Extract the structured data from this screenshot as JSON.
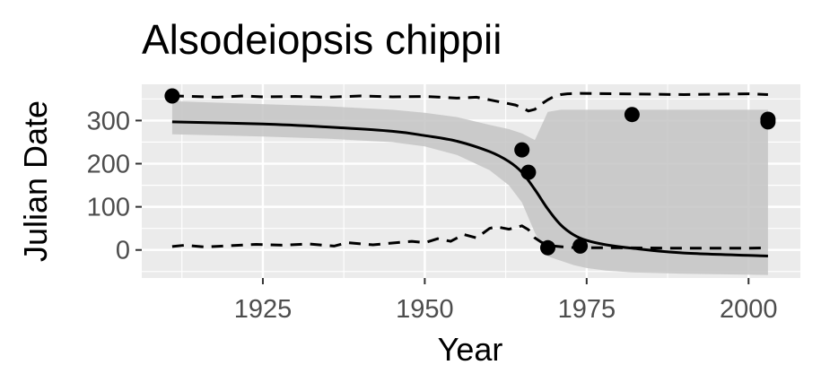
{
  "chart_data": {
    "type": "line",
    "title": "Alsodeiopsis chippii",
    "xlabel": "Year",
    "ylabel": "Julian Date",
    "xlim": [
      1906.3,
      2008.0
    ],
    "ylim": [
      -65,
      384
    ],
    "xticks": [
      1925,
      1950,
      1975,
      2000
    ],
    "xtick_labels": [
      "1925",
      "1950",
      "1975",
      "2000"
    ],
    "yticks": [
      0,
      100,
      200,
      300
    ],
    "ytick_labels": [
      "0",
      "100",
      "200",
      "300"
    ],
    "grid": true,
    "legend": "none",
    "points": [
      {
        "x": 1911,
        "y": 357
      },
      {
        "x": 1965,
        "y": 232
      },
      {
        "x": 1966,
        "y": 180
      },
      {
        "x": 1969,
        "y": 5
      },
      {
        "x": 1974,
        "y": 9
      },
      {
        "x": 1982,
        "y": 314
      },
      {
        "x": 2003,
        "y": 297
      },
      {
        "x": 2003,
        "y": 303
      }
    ],
    "fit": {
      "x": [
        1911,
        1925,
        1935,
        1945,
        1950,
        1955,
        1960,
        1963,
        1965,
        1967,
        1969,
        1971,
        1973,
        1975,
        1978,
        1982,
        1990,
        2003
      ],
      "y": [
        297,
        292,
        285,
        275,
        265,
        252,
        228,
        205,
        180,
        140,
        95,
        58,
        35,
        22,
        12,
        4,
        -7,
        -14
      ]
    },
    "ribbon": {
      "x": [
        1911,
        1925,
        1935,
        1945,
        1950,
        1955,
        1960,
        1963,
        1965,
        1967,
        1969,
        1971,
        1973,
        1975,
        1978,
        1982,
        1990,
        2003
      ],
      "upper": [
        345,
        338,
        333,
        325,
        318,
        308,
        290,
        280,
        270,
        255,
        320,
        325,
        325,
        325,
        325,
        325,
        325,
        325
      ],
      "lower": [
        268,
        263,
        258,
        250,
        240,
        220,
        185,
        150,
        110,
        40,
        -15,
        -25,
        -35,
        -42,
        -48,
        -52,
        -55,
        -58
      ]
    },
    "upper_dashed": {
      "x": [
        1911,
        1914,
        1918,
        1922,
        1925,
        1930,
        1935,
        1940,
        1945,
        1950,
        1955,
        1958,
        1960,
        1962,
        1964,
        1965,
        1966,
        1967,
        1968,
        1969,
        1970,
        1971,
        1972,
        1974,
        1980,
        1990,
        2000,
        2003
      ],
      "y": [
        357,
        356,
        354,
        357,
        355,
        356,
        354,
        357,
        355,
        356,
        352,
        354,
        348,
        342,
        336,
        330,
        322,
        326,
        338,
        348,
        356,
        360,
        362,
        363,
        362,
        360,
        362,
        360
      ]
    },
    "lower_dashed": {
      "x": [
        1911,
        1913,
        1916,
        1920,
        1924,
        1928,
        1932,
        1936,
        1938,
        1942,
        1945,
        1948,
        1950,
        1952,
        1954,
        1956,
        1958,
        1960,
        1961,
        1963,
        1965,
        1966,
        1967,
        1968,
        1969,
        1970,
        1972,
        1974,
        1980,
        1990,
        2000,
        2003
      ],
      "y": [
        8,
        11,
        7,
        10,
        13,
        11,
        14,
        9,
        17,
        12,
        16,
        20,
        17,
        26,
        20,
        36,
        28,
        50,
        54,
        48,
        56,
        47,
        28,
        18,
        12,
        9,
        6,
        5,
        5,
        4,
        4,
        5
      ]
    },
    "colors": {
      "panel": "#ebebeb",
      "grid_major": "#ffffff",
      "ribbon": "#c4c4c4",
      "ribbon_opacity": 0.85,
      "line": "#000000",
      "points": "#000000",
      "tick_label": "#4d4d4d"
    }
  }
}
